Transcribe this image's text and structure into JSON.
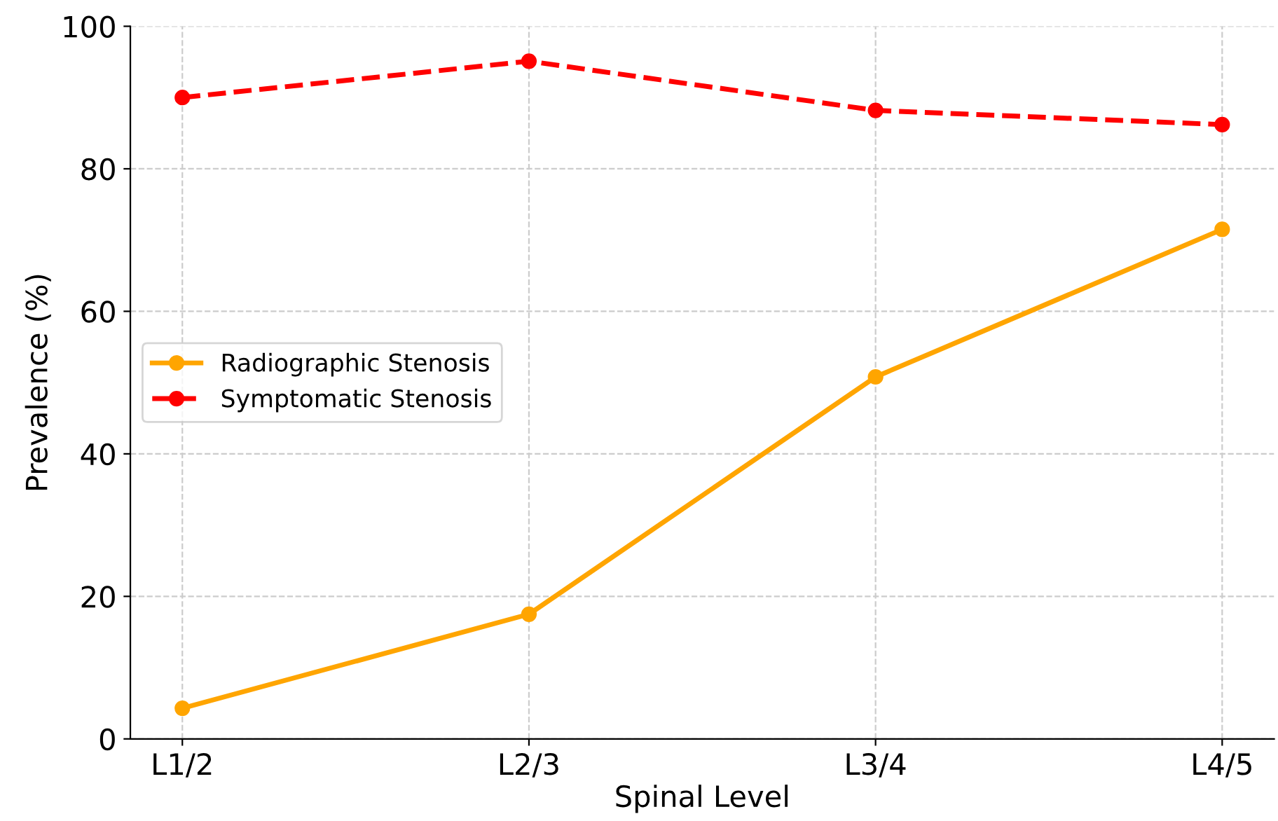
{
  "chart_data": {
    "type": "line",
    "xlabel": "Spinal Level",
    "ylabel": "Prevalence (%)",
    "categories": [
      "L1/2",
      "L2/3",
      "L3/4",
      "L4/5"
    ],
    "series": [
      {
        "name": "Radiographic Stenosis",
        "color": "#ffa500",
        "values": [
          4.3,
          17.5,
          50.8,
          71.5
        ],
        "line_style": "solid"
      },
      {
        "name": "Symptomatic Stenosis",
        "color": "#ff0000",
        "values": [
          90,
          95.1,
          88.2,
          86.2
        ],
        "line_style": "dashed"
      }
    ],
    "ylim": [
      0,
      100
    ],
    "yticks": [
      0,
      20,
      40,
      60,
      80,
      100
    ],
    "grid": true,
    "legend": "center left",
    "marker": "circle"
  }
}
